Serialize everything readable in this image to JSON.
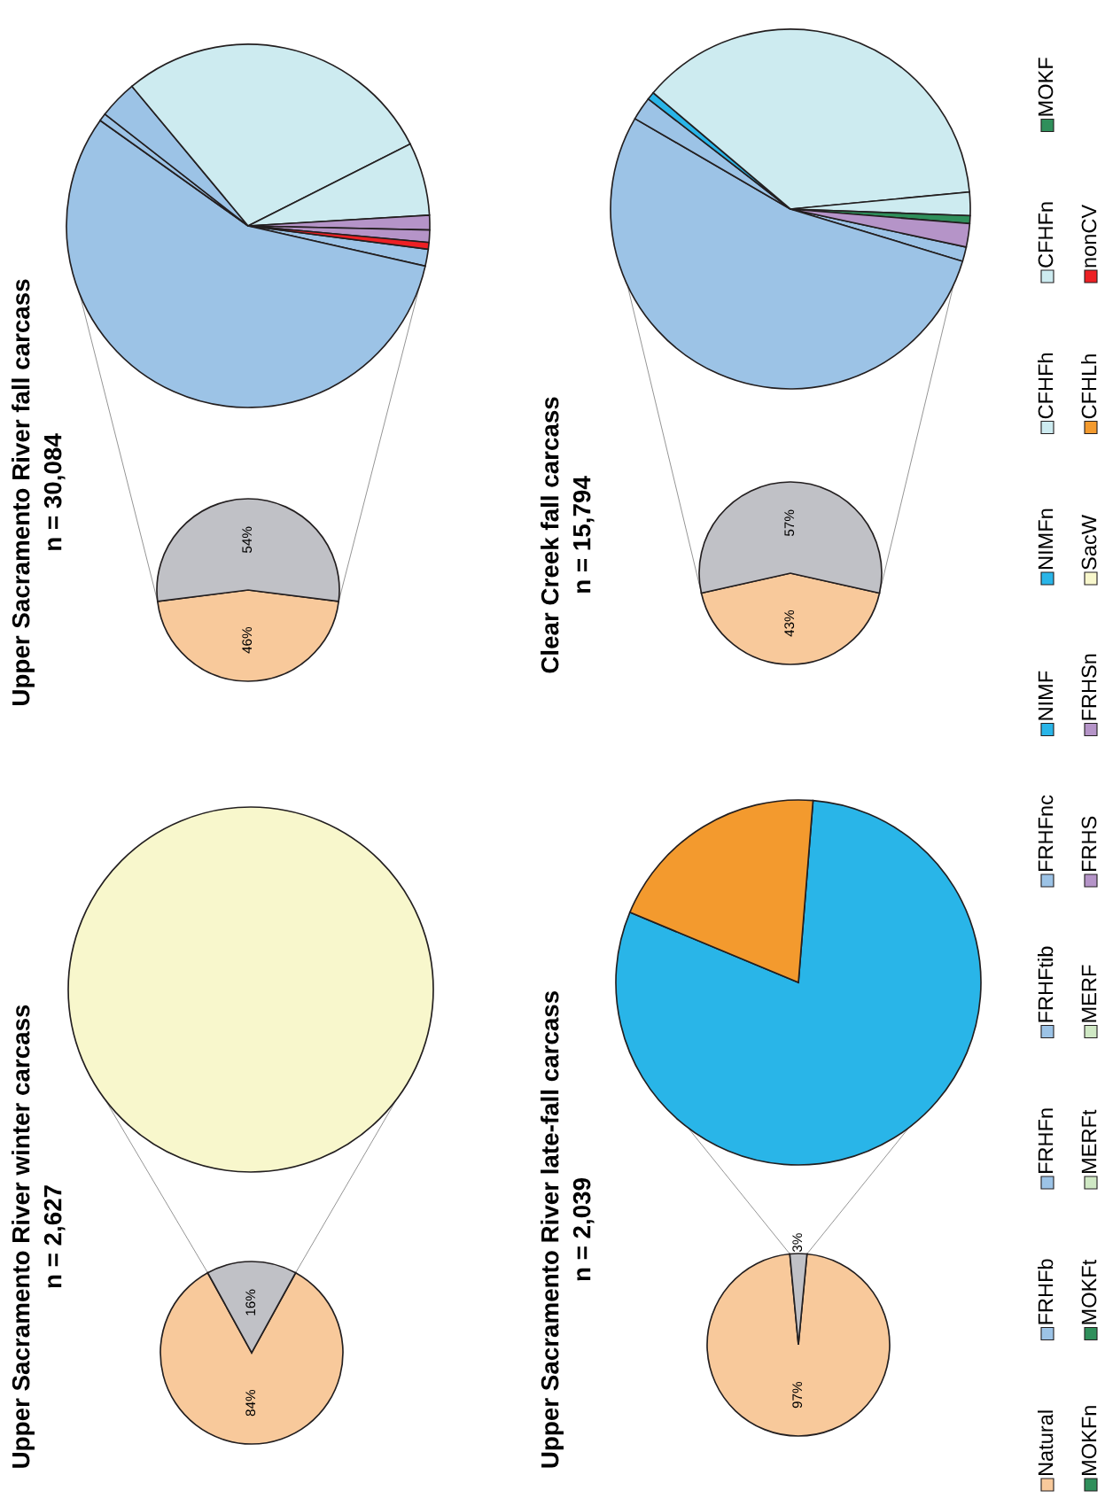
{
  "chart_data": [
    {
      "type": "pie",
      "title": "Upper Sacramento River winter carcass",
      "subtitle": "n = 2,627",
      "categories": [
        null,
        null
      ],
      "values": [
        84,
        16
      ],
      "colors": [
        "#f8c99b",
        "#c0c1c6"
      ],
      "value_labels": [
        "84%",
        "16%"
      ]
    },
    {
      "type": "pie",
      "categories": [
        null
      ],
      "values": [
        100
      ],
      "colors": [
        "#f8f7cc"
      ]
    },
    {
      "type": "pie",
      "title": "Upper Sacramento River fall carcass",
      "subtitle": "n = 30,084",
      "categories": [
        null,
        null
      ],
      "values": [
        46,
        54
      ],
      "colors": [
        "#f8c99b",
        "#c0c1c6"
      ],
      "value_labels": [
        "46%",
        "54%"
      ]
    },
    {
      "type": "pie",
      "categories": [
        null,
        null,
        null,
        null,
        null,
        null,
        null,
        null,
        null
      ],
      "values": [
        1.5,
        56.3,
        0.7,
        3.4,
        28.6,
        6.5,
        1.3,
        1.1,
        0.6
      ],
      "colors": [
        "#9cc3e6",
        "#9cc3e6",
        "#9cc3e6",
        "#9cc3e6",
        "#cdebf0",
        "#cdebf0",
        "#b594c8",
        "#b594c8",
        "#ed2024"
      ]
    },
    {
      "type": "pie",
      "title": "Upper Sacramento River late-fall carcass",
      "subtitle": "n = 2,039",
      "categories": [
        null,
        null
      ],
      "values": [
        97,
        3
      ],
      "colors": [
        "#f8c99b",
        "#c0c1c6"
      ],
      "value_labels": [
        "97%",
        "3%"
      ]
    },
    {
      "type": "pie",
      "categories": [
        null,
        null
      ],
      "values": [
        80,
        20
      ],
      "colors": [
        "#29b5e8",
        "#f39a2e"
      ]
    },
    {
      "type": "pie",
      "title": "Clear Creek fall carcass",
      "subtitle": "n = 15,794",
      "categories": [
        null,
        null
      ],
      "values": [
        43,
        57
      ],
      "colors": [
        "#f8c99b",
        "#c0c1c6"
      ],
      "value_labels": [
        "43%",
        "57%"
      ]
    },
    {
      "type": "pie",
      "categories": [
        null,
        null,
        null,
        null,
        null,
        null,
        null,
        null
      ],
      "values": [
        1.3,
        53.7,
        2.1,
        0.7,
        37.3,
        2.1,
        0.7,
        2.1
      ],
      "colors": [
        "#9cc3e6",
        "#9cc3e6",
        "#9cc3e6",
        "#29b5e8",
        "#cdebf0",
        "#cdebf0",
        "#2f8f5b",
        "#b594c8"
      ]
    },
    {
      "type": "other",
      "categories": [
        "Natural",
        "FRHFb",
        "FRHFn",
        "FRHFtib",
        "FRHFnc",
        "NIMF",
        "NIMFn",
        "CFHFh",
        "CFHFn",
        "MOKF",
        "MOKFn",
        "MOKFt",
        "MERFt",
        "MERF",
        "FRHS",
        "FRHSn",
        "SacW",
        "CFHLh",
        "nonCV"
      ],
      "colors": [
        "#f8c99b",
        "#9cc3e6",
        "#9cc3e6",
        "#9cc3e6",
        "#9cc3e6",
        "#29b5e8",
        "#29b5e8",
        "#cdebf0",
        "#cdebf0",
        "#2f8f5b",
        "#2f8f5b",
        "#2f8f5b",
        "#cfe8c4",
        "#cfe8c4",
        "#b594c8",
        "#b594c8",
        "#f8f7cc",
        "#f39a2e",
        "#ed2024"
      ]
    }
  ]
}
